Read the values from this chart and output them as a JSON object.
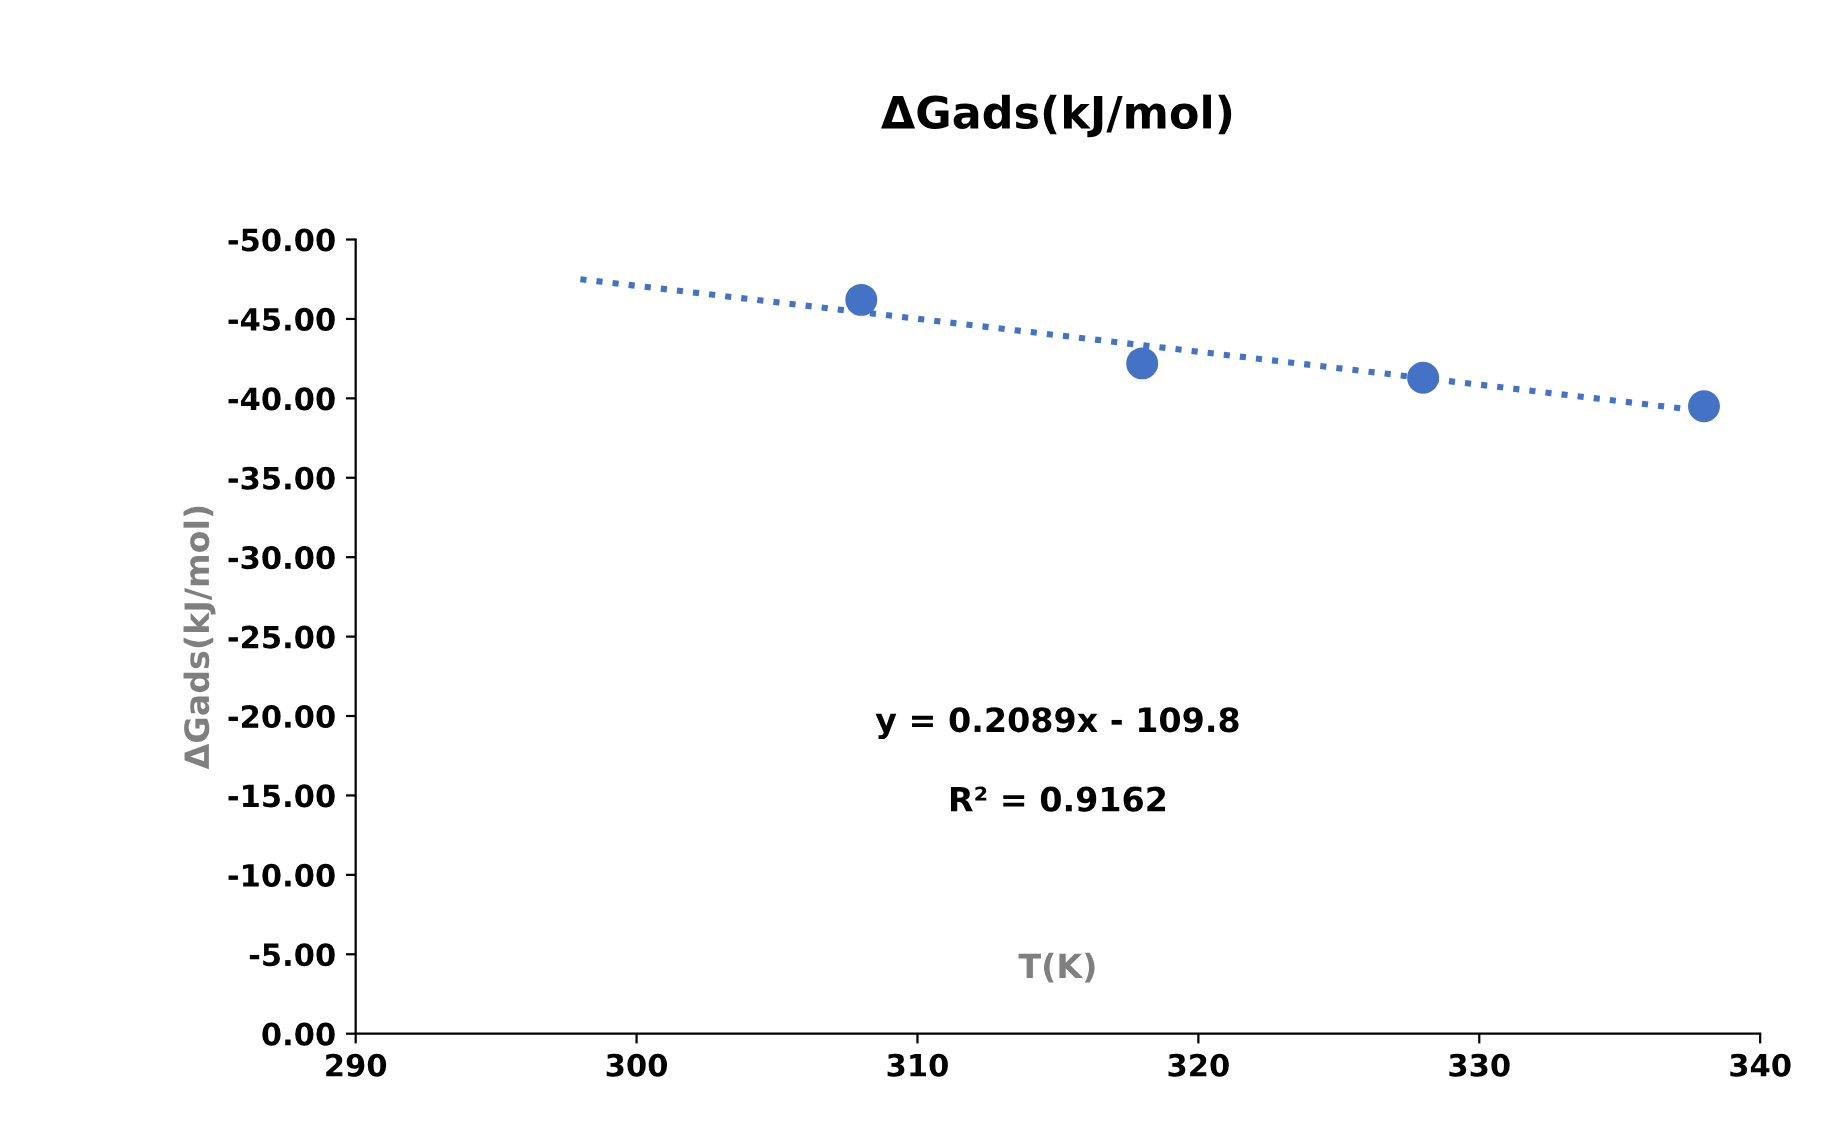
{
  "chart_data": {
    "type": "scatter",
    "title": "ΔGads(kJ/mol)",
    "xlabel": "T(K)",
    "ylabel": "ΔGads(kJ/mol)",
    "series": [
      {
        "color": "#4472c4",
        "x": [
          308,
          318,
          328,
          338
        ],
        "values": [
          -46.2,
          -42.2,
          -41.3,
          -39.5
        ],
        "marker": "circle"
      },
      {
        "type": "line",
        "color": "#4472c4",
        "x": [
          298,
          338
        ],
        "values": [
          -47.5,
          -39.2
        ],
        "line_style": "dotted",
        "marker": "none"
      }
    ],
    "annotations": [
      "y = 0.2089x - 109.8",
      "R² = 0.9162"
    ],
    "xlim": [
      290,
      340
    ],
    "xticks": [
      290,
      300,
      310,
      320,
      330,
      340
    ],
    "ylim": [
      0,
      -50
    ],
    "yticks": [
      {
        "value": -50,
        "label": "-50.00"
      },
      {
        "value": -45,
        "label": "-45.00"
      },
      {
        "value": -40,
        "label": "-40.00"
      },
      {
        "value": -35,
        "label": "-35.00"
      },
      {
        "value": -30,
        "label": "-30.00"
      },
      {
        "value": -25,
        "label": "-25.00"
      },
      {
        "value": -20,
        "label": "-20.00"
      },
      {
        "value": -15,
        "label": "-15.00"
      },
      {
        "value": -10,
        "label": "-10.00"
      },
      {
        "value": -5,
        "label": "-5.00"
      },
      {
        "value": 0,
        "label": "0.00"
      }
    ],
    "grid": false,
    "legend": false
  }
}
